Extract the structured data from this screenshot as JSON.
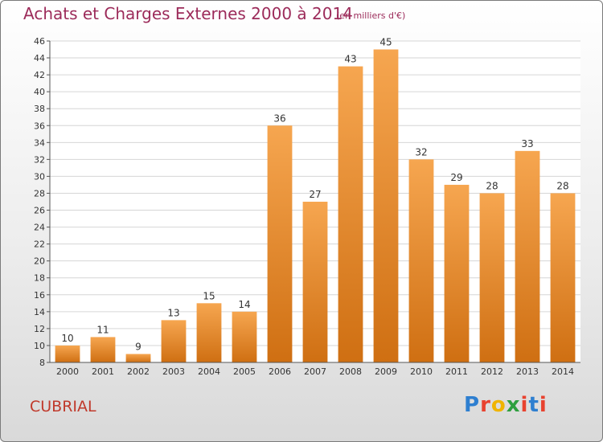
{
  "header": {
    "title": "Achats et Charges Externes 2000 à 2014",
    "subtitle": "(en milliers d'€)"
  },
  "footer": {
    "commune": "CUBRIAL",
    "logo": [
      "P",
      "r",
      "o",
      "x",
      "i",
      "t",
      "i"
    ]
  },
  "colors": {
    "bar_light": "#f6a650",
    "bar_dark": "#cf6f12",
    "title": "#9c2b5a",
    "commune": "#c0392b",
    "grid": "#d6d6d6",
    "logo": [
      "#2e7fd0",
      "#e8422f",
      "#f0b400",
      "#2e9f3e",
      "#e8422f",
      "#2e7fd0",
      "#e8422f"
    ]
  },
  "chart_data": {
    "type": "bar",
    "title": "Achats et Charges Externes 2000 à 2014",
    "subtitle": "(en milliers d'€)",
    "categories": [
      "2000",
      "2001",
      "2002",
      "2003",
      "2004",
      "2005",
      "2006",
      "2007",
      "2008",
      "2009",
      "2010",
      "2011",
      "2012",
      "2013",
      "2014"
    ],
    "values": [
      10,
      11,
      9,
      13,
      15,
      14,
      36,
      27,
      43,
      45,
      32,
      29,
      28,
      33,
      28
    ],
    "ylim": [
      8,
      46
    ],
    "yticks": [
      8,
      10,
      12,
      14,
      16,
      18,
      20,
      22,
      24,
      26,
      28,
      30,
      32,
      34,
      36,
      38,
      40,
      42,
      44,
      46
    ],
    "xlabel": "",
    "ylabel": "",
    "grid": true
  }
}
